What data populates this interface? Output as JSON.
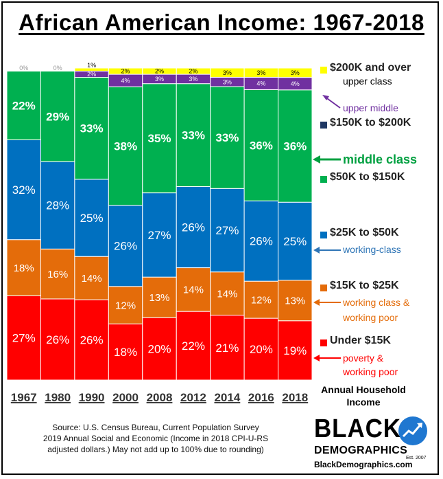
{
  "title": "African American Income: 1967-2018",
  "chart_data": {
    "type": "bar",
    "stacked": true,
    "categories": [
      "1967",
      "1980",
      "1990",
      "2000",
      "2008",
      "2012",
      "2014",
      "2016",
      "2018"
    ],
    "series": [
      {
        "name": "Under $15K",
        "color": "#ff0000",
        "values": [
          27,
          26,
          26,
          18,
          20,
          22,
          21,
          20,
          19
        ]
      },
      {
        "name": "$15K to $25K",
        "color": "#e46c0a",
        "values": [
          18,
          16,
          14,
          12,
          13,
          14,
          14,
          12,
          13
        ]
      },
      {
        "name": "$25K to $50K",
        "color": "#0070c0",
        "values": [
          32,
          28,
          25,
          26,
          27,
          26,
          27,
          26,
          25
        ]
      },
      {
        "name": "$50K to $150K",
        "color": "#00b050",
        "values": [
          22,
          29,
          33,
          38,
          35,
          33,
          33,
          36,
          36
        ]
      },
      {
        "name": "$150K to $200K",
        "color": "#7030a0",
        "values": [
          0,
          0,
          2,
          4,
          3,
          3,
          3,
          4,
          4
        ]
      },
      {
        "name": "$200K and over",
        "color": "#ffff00",
        "values": [
          0,
          0,
          1,
          2,
          2,
          2,
          3,
          3,
          3
        ]
      }
    ],
    "data_labels": [
      [
        "27%",
        "18%",
        "32%",
        "22%",
        "",
        "0%"
      ],
      [
        "26%",
        "16%",
        "28%",
        "29%",
        "",
        "0%"
      ],
      [
        "26%",
        "14%",
        "25%",
        "33%",
        "2%",
        "1%"
      ],
      [
        "18%",
        "12%",
        "26%",
        "38%",
        "4%",
        "2%"
      ],
      [
        "20%",
        "13%",
        "27%",
        "35%",
        "3%",
        "2%"
      ],
      [
        "22%",
        "14%",
        "26%",
        "33%",
        "3%",
        "2%"
      ],
      [
        "21%",
        "14%",
        "27%",
        "33%",
        "3%",
        "3%"
      ],
      [
        "20%",
        "12%",
        "26%",
        "36%",
        "4%",
        "3%"
      ],
      [
        "19%",
        "13%",
        "25%",
        "36%",
        "4%",
        "3%"
      ]
    ],
    "grid": false,
    "legend_position": "right"
  },
  "legend": {
    "items": [
      {
        "label": "$200K and over",
        "color": "#ffff00",
        "sub": "upper class",
        "sub_color": "#000000"
      },
      {
        "label": "",
        "color": "",
        "sub": "upper middle",
        "sub_color": "#7030a0"
      },
      {
        "label": "$150K to $200K",
        "color": "#1f3864",
        "sub": "",
        "sub_color": ""
      },
      {
        "label": "middle class",
        "color": "",
        "sub": "",
        "sub_color": "#00a040"
      },
      {
        "label": "$50K to $150K",
        "color": "#00b050",
        "sub": "",
        "sub_color": ""
      },
      {
        "label": "$25K to $50K",
        "color": "#0070c0",
        "sub": "working-class",
        "sub_color": "#2e75b6"
      },
      {
        "label": "$15K to $25K",
        "color": "#e46c0a",
        "sub": "working class &",
        "sub_color": "#e46c0a"
      },
      {
        "label": "",
        "color": "",
        "sub": "working poor",
        "sub_color": "#e46c0a"
      },
      {
        "label": "Under $15K",
        "color": "#ff0000",
        "sub": "poverty &",
        "sub_color": "#ff0000"
      },
      {
        "label": "",
        "color": "",
        "sub": "working poor",
        "sub_color": "#ff0000"
      }
    ],
    "axis_note_line1": "Annual Household",
    "axis_note_line2": "Income"
  },
  "source": {
    "line1": "Source: U.S. Census Bureau, Current Population Survey",
    "line2": "2019 Annual Social and Economic (Income in 2018 CPI-U-RS",
    "line3": "adjusted dollars.) May not add up to 100% due to rounding)"
  },
  "logo": {
    "word1": "BLACK",
    "word2": "DEMOGRAPHICS",
    "est": "Est. 2007",
    "url": "BlackDemographics.com"
  }
}
